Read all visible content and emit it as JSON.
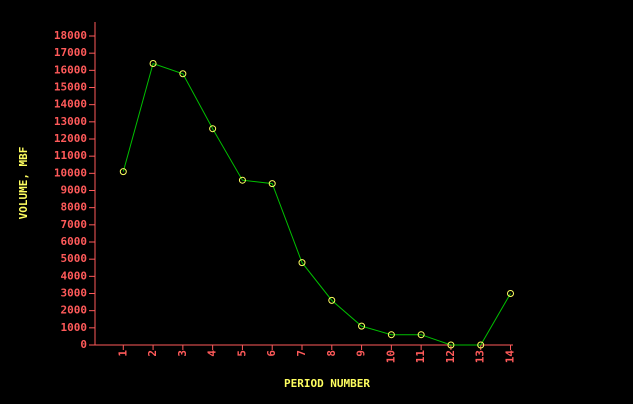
{
  "chart_data": {
    "type": "line",
    "x_label": "PERIOD NUMBER",
    "y_label": "VOLUME, MBF",
    "x": [
      1,
      2,
      3,
      4,
      5,
      6,
      7,
      8,
      9,
      10,
      11,
      12,
      13,
      14
    ],
    "series": [
      {
        "color": "#00c000",
        "values": [
          10100,
          16400,
          15800,
          12600,
          9600,
          9400,
          4800,
          2600,
          1100,
          600,
          600,
          0,
          0,
          3000
        ]
      }
    ],
    "xlim": [
      0,
      14
    ],
    "xticks": [
      1,
      2,
      3,
      4,
      5,
      6,
      7,
      8,
      9,
      10,
      11,
      12,
      13,
      14
    ],
    "ylim": [
      0,
      18000
    ],
    "yticks": [
      0,
      1000,
      2000,
      3000,
      4000,
      5000,
      6000,
      7000,
      8000,
      9000,
      10000,
      11000,
      12000,
      13000,
      14000,
      15000,
      16000,
      17000,
      18000
    ],
    "marker_color": "#ffff60",
    "axis_color": "#ff5a5a",
    "label_color": "#ffff60"
  }
}
